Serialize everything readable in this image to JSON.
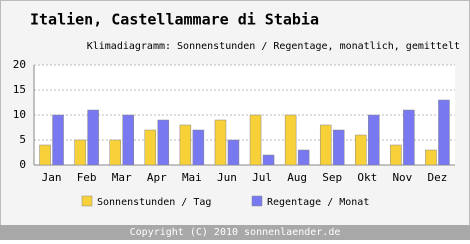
{
  "chart_data": {
    "type": "bar",
    "title": "Italien, Castellammare di Stabia",
    "subtitle": "Klimadiagramm: Sonnenstunden / Regentage, monatlich, gemittelt",
    "categories": [
      "Jan",
      "Feb",
      "Mar",
      "Apr",
      "Mai",
      "Jun",
      "Jul",
      "Aug",
      "Sep",
      "Okt",
      "Nov",
      "Dez"
    ],
    "series": [
      {
        "name": "Sonnenstunden / Tag",
        "color": "#f8d038",
        "values": [
          4,
          5,
          5,
          7,
          8,
          9,
          10,
          10,
          8,
          6,
          4,
          3
        ]
      },
      {
        "name": "Regentage / Monat",
        "color": "#7878f0",
        "values": [
          10,
          11,
          10,
          9,
          7,
          5,
          2,
          3,
          7,
          10,
          11,
          13
        ]
      }
    ],
    "ylim": [
      0,
      20
    ],
    "yticks": [
      0,
      5,
      10,
      15,
      20
    ],
    "grid": true,
    "footer": "Copyright (C) 2010 sonnenlaender.de"
  }
}
